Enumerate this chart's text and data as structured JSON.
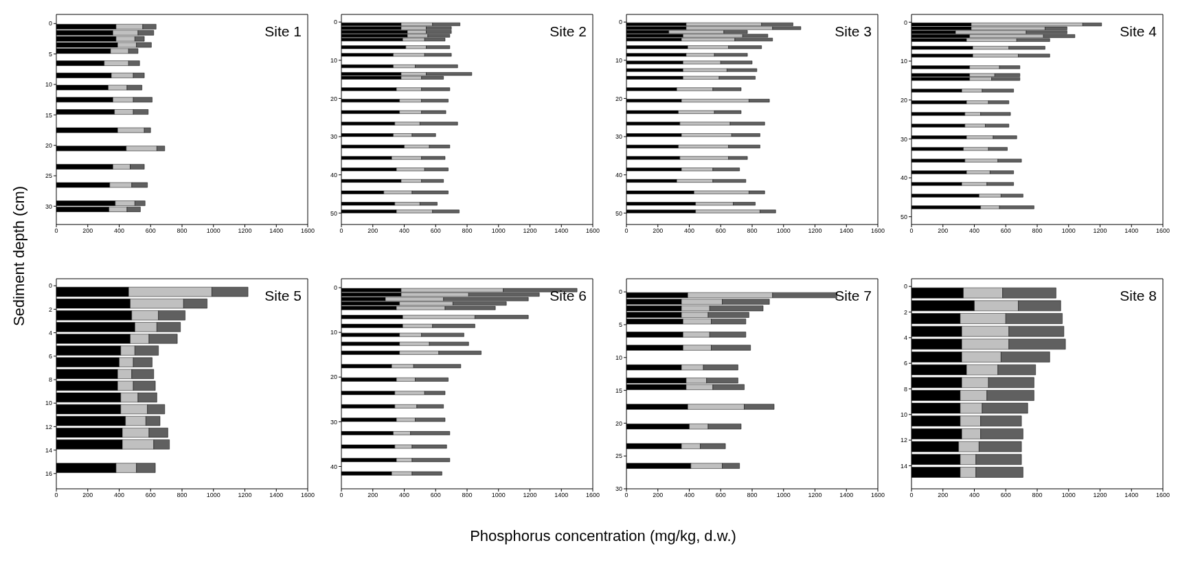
{
  "chart_data": [
    {
      "type": "bar",
      "orientation": "horizontal",
      "stacked": true,
      "title": "Site 1",
      "ylabel": "Sediment depth (cm)",
      "x": [
        0.5,
        1.5,
        2.5,
        3.5,
        4.5,
        6.5,
        8.5,
        10.5,
        12.5,
        14.5,
        17.5,
        20.5,
        23.5,
        26.5,
        29.5,
        30.5
      ],
      "xlim": [
        0,
        1600
      ],
      "xticks": [
        0,
        200,
        400,
        600,
        800,
        1000,
        1200,
        1400,
        1600
      ],
      "ylim": [
        33,
        -1.5
      ],
      "yticks": [
        0,
        5,
        10,
        15,
        20,
        25,
        30
      ],
      "grid": false,
      "legend": false,
      "series": [
        {
          "color": "#000000",
          "values": [
            380,
            360,
            380,
            390,
            345,
            305,
            350,
            330,
            360,
            370,
            390,
            445,
            360,
            340,
            375,
            335
          ]
        },
        {
          "color": "#c0c0c0",
          "values": [
            170,
            160,
            120,
            120,
            115,
            155,
            140,
            120,
            130,
            120,
            170,
            195,
            110,
            140,
            125,
            115
          ]
        },
        {
          "color": "#606060",
          "values": [
            85,
            100,
            60,
            95,
            60,
            70,
            70,
            95,
            120,
            95,
            40,
            50,
            90,
            100,
            65,
            85
          ]
        }
      ]
    },
    {
      "type": "bar",
      "orientation": "horizontal",
      "stacked": true,
      "title": "Site 2",
      "x": [
        0.5,
        1.5,
        2.5,
        3.5,
        4.5,
        6.5,
        8.5,
        11.5,
        13.5,
        14.5,
        17.5,
        20.5,
        23.5,
        26.5,
        29.5,
        32.5,
        35.5,
        38.5,
        41.5,
        44.5,
        47.5,
        49.5
      ],
      "xlim": [
        0,
        1600
      ],
      "xticks": [
        0,
        200,
        400,
        600,
        800,
        1000,
        1200,
        1400,
        1600
      ],
      "ylim": [
        53,
        -2
      ],
      "yticks": [
        0,
        10,
        20,
        30,
        40,
        50
      ],
      "grid": false,
      "legend": false,
      "series": [
        {
          "color": "#000000",
          "values": [
            380,
            380,
            420,
            420,
            390,
            410,
            330,
            330,
            380,
            380,
            350,
            370,
            370,
            340,
            330,
            400,
            320,
            350,
            380,
            270,
            340,
            350
          ]
        },
        {
          "color": "#c0c0c0",
          "values": [
            200,
            160,
            120,
            130,
            140,
            130,
            200,
            140,
            160,
            130,
            160,
            140,
            140,
            160,
            120,
            160,
            190,
            180,
            130,
            180,
            160,
            230
          ]
        },
        {
          "color": "#606060",
          "values": [
            175,
            160,
            160,
            140,
            130,
            150,
            170,
            270,
            290,
            140,
            180,
            170,
            155,
            240,
            150,
            130,
            150,
            150,
            140,
            230,
            110,
            170
          ]
        }
      ]
    },
    {
      "type": "bar",
      "orientation": "horizontal",
      "stacked": true,
      "title": "Site 3",
      "x": [
        0.5,
        1.5,
        2.5,
        3.5,
        4.5,
        6.5,
        8.5,
        10.5,
        12.5,
        14.5,
        17.5,
        20.5,
        23.5,
        26.5,
        29.5,
        32.5,
        35.5,
        38.5,
        41.5,
        44.5,
        47.5,
        49.5
      ],
      "xlim": [
        0,
        1600
      ],
      "xticks": [
        0,
        200,
        400,
        600,
        800,
        1000,
        1200,
        1400,
        1600
      ],
      "ylim": [
        53,
        -2
      ],
      "yticks": [
        0,
        10,
        20,
        30,
        40,
        50
      ],
      "grid": false,
      "legend": false,
      "series": [
        {
          "color": "#000000",
          "values": [
            380,
            380,
            270,
            360,
            350,
            390,
            380,
            360,
            360,
            360,
            320,
            350,
            330,
            340,
            350,
            330,
            340,
            350,
            320,
            430,
            440,
            440
          ]
        },
        {
          "color": "#c0c0c0",
          "values": [
            480,
            550,
            350,
            380,
            340,
            260,
            180,
            240,
            280,
            230,
            230,
            430,
            230,
            320,
            320,
            320,
            310,
            200,
            230,
            350,
            240,
            410
          ]
        },
        {
          "color": "#606060",
          "values": [
            200,
            180,
            150,
            160,
            240,
            210,
            210,
            200,
            190,
            230,
            180,
            130,
            170,
            220,
            180,
            200,
            120,
            170,
            210,
            100,
            140,
            100
          ]
        }
      ]
    },
    {
      "type": "bar",
      "orientation": "horizontal",
      "stacked": true,
      "title": "Site 4",
      "x": [
        0.5,
        1.5,
        2.5,
        3.5,
        4.5,
        6.5,
        8.5,
        11.5,
        13.5,
        14.5,
        17.5,
        20.5,
        23.5,
        26.5,
        29.5,
        32.5,
        35.5,
        38.5,
        41.5,
        44.5,
        47.5
      ],
      "xlim": [
        0,
        1600
      ],
      "xticks": [
        0,
        200,
        400,
        600,
        800,
        1000,
        1200,
        1400,
        1600
      ],
      "ylim": [
        52,
        -2
      ],
      "yticks": [
        0,
        10,
        20,
        30,
        40,
        50
      ],
      "grid": false,
      "legend": false,
      "series": [
        {
          "color": "#000000",
          "values": [
            380,
            380,
            280,
            370,
            350,
            390,
            390,
            370,
            370,
            370,
            320,
            350,
            340,
            340,
            350,
            330,
            340,
            350,
            320,
            430,
            440
          ]
        },
        {
          "color": "#c0c0c0",
          "values": [
            710,
            470,
            450,
            470,
            320,
            230,
            290,
            190,
            160,
            140,
            130,
            140,
            100,
            130,
            170,
            160,
            210,
            150,
            160,
            140,
            120
          ]
        },
        {
          "color": "#606060",
          "values": [
            120,
            140,
            260,
            200,
            210,
            230,
            200,
            130,
            160,
            180,
            200,
            130,
            190,
            150,
            150,
            120,
            150,
            150,
            170,
            140,
            220
          ]
        }
      ]
    },
    {
      "type": "bar",
      "orientation": "horizontal",
      "stacked": true,
      "title": "Site 5",
      "x": [
        0.5,
        1.5,
        2.5,
        3.5,
        4.5,
        5.5,
        6.5,
        7.5,
        8.5,
        9.5,
        10.5,
        11.5,
        12.5,
        13.5,
        15.5
      ],
      "xlim": [
        0,
        1600
      ],
      "xticks": [
        0,
        200,
        400,
        600,
        800,
        1000,
        1200,
        1400,
        1600
      ],
      "ylim": [
        17.3,
        -0.6
      ],
      "yticks": [
        0,
        2,
        4,
        6,
        8,
        10,
        12,
        14,
        16
      ],
      "grid": false,
      "legend": false,
      "series": [
        {
          "color": "#000000",
          "values": [
            460,
            470,
            480,
            500,
            470,
            410,
            400,
            390,
            390,
            410,
            410,
            440,
            420,
            420,
            380
          ]
        },
        {
          "color": "#c0c0c0",
          "values": [
            530,
            340,
            170,
            140,
            120,
            90,
            90,
            90,
            100,
            110,
            170,
            130,
            170,
            200,
            130
          ]
        },
        {
          "color": "#606060",
          "values": [
            230,
            150,
            170,
            150,
            180,
            150,
            120,
            140,
            140,
            120,
            110,
            90,
            120,
            100,
            120
          ]
        }
      ]
    },
    {
      "type": "bar",
      "orientation": "horizontal",
      "stacked": true,
      "title": "Site 6",
      "xlabel": "Phosphorus concentration (mg/kg, d.w.)",
      "x": [
        0.5,
        1.5,
        2.5,
        3.5,
        4.5,
        6.5,
        8.5,
        10.5,
        12.5,
        14.5,
        17.5,
        20.5,
        23.5,
        26.5,
        29.5,
        32.5,
        35.5,
        38.5,
        41.5
      ],
      "xlim": [
        0,
        1600
      ],
      "xticks": [
        0,
        200,
        400,
        600,
        800,
        1000,
        1200,
        1400,
        1600
      ],
      "ylim": [
        45,
        -2
      ],
      "yticks": [
        0,
        10,
        20,
        30,
        40
      ],
      "grid": false,
      "legend": false,
      "series": [
        {
          "color": "#000000",
          "values": [
            380,
            380,
            280,
            370,
            350,
            390,
            390,
            370,
            370,
            370,
            320,
            350,
            340,
            340,
            350,
            330,
            340,
            350,
            320
          ]
        },
        {
          "color": "#c0c0c0",
          "values": [
            650,
            430,
            370,
            340,
            310,
            460,
            190,
            140,
            190,
            250,
            140,
            120,
            190,
            140,
            120,
            110,
            110,
            100,
            130
          ]
        },
        {
          "color": "#606060",
          "values": [
            470,
            450,
            540,
            340,
            320,
            340,
            270,
            270,
            250,
            270,
            300,
            210,
            130,
            170,
            190,
            250,
            220,
            240,
            190
          ]
        }
      ]
    },
    {
      "type": "bar",
      "orientation": "horizontal",
      "stacked": true,
      "title": "Site 7",
      "x": [
        0.5,
        1.5,
        2.5,
        3.5,
        4.5,
        6.5,
        8.5,
        11.5,
        13.5,
        14.5,
        17.5,
        20.5,
        23.5,
        26.5
      ],
      "xlim": [
        0,
        1600
      ],
      "xticks": [
        0,
        200,
        400,
        600,
        800,
        1000,
        1200,
        1400,
        1600
      ],
      "ylim": [
        30,
        -2
      ],
      "yticks": [
        0,
        5,
        10,
        15,
        20,
        25,
        30
      ],
      "grid": false,
      "legend": false,
      "series": [
        {
          "color": "#000000",
          "values": [
            390,
            350,
            350,
            350,
            360,
            360,
            360,
            350,
            380,
            380,
            390,
            400,
            350,
            410
          ]
        },
        {
          "color": "#c0c0c0",
          "values": [
            540,
            260,
            180,
            170,
            180,
            170,
            180,
            140,
            130,
            170,
            360,
            120,
            120,
            200
          ]
        },
        {
          "color": "#606060",
          "values": [
            410,
            300,
            340,
            260,
            220,
            230,
            250,
            220,
            200,
            200,
            190,
            210,
            160,
            110
          ]
        }
      ]
    },
    {
      "type": "bar",
      "orientation": "horizontal",
      "stacked": true,
      "title": "Site 8",
      "x": [
        0.5,
        1.5,
        2.5,
        3.5,
        4.5,
        5.5,
        6.5,
        7.5,
        8.5,
        9.5,
        10.5,
        11.5,
        12.5,
        13.5,
        14.5
      ],
      "xlim": [
        0,
        1600
      ],
      "xticks": [
        0,
        200,
        400,
        600,
        800,
        1000,
        1200,
        1400,
        1600
      ],
      "ylim": [
        15.8,
        -0.6
      ],
      "yticks": [
        0,
        2,
        4,
        6,
        8,
        10,
        12,
        14
      ],
      "grid": false,
      "legend": false,
      "series": [
        {
          "color": "#000000",
          "values": [
            330,
            400,
            310,
            320,
            320,
            320,
            350,
            320,
            310,
            310,
            310,
            320,
            300,
            310,
            310
          ]
        },
        {
          "color": "#c0c0c0",
          "values": [
            250,
            280,
            290,
            300,
            300,
            250,
            200,
            170,
            170,
            140,
            130,
            120,
            130,
            100,
            100
          ]
        },
        {
          "color": "#606060",
          "values": [
            340,
            270,
            360,
            350,
            360,
            310,
            240,
            290,
            300,
            290,
            260,
            270,
            270,
            290,
            300
          ]
        }
      ]
    }
  ]
}
